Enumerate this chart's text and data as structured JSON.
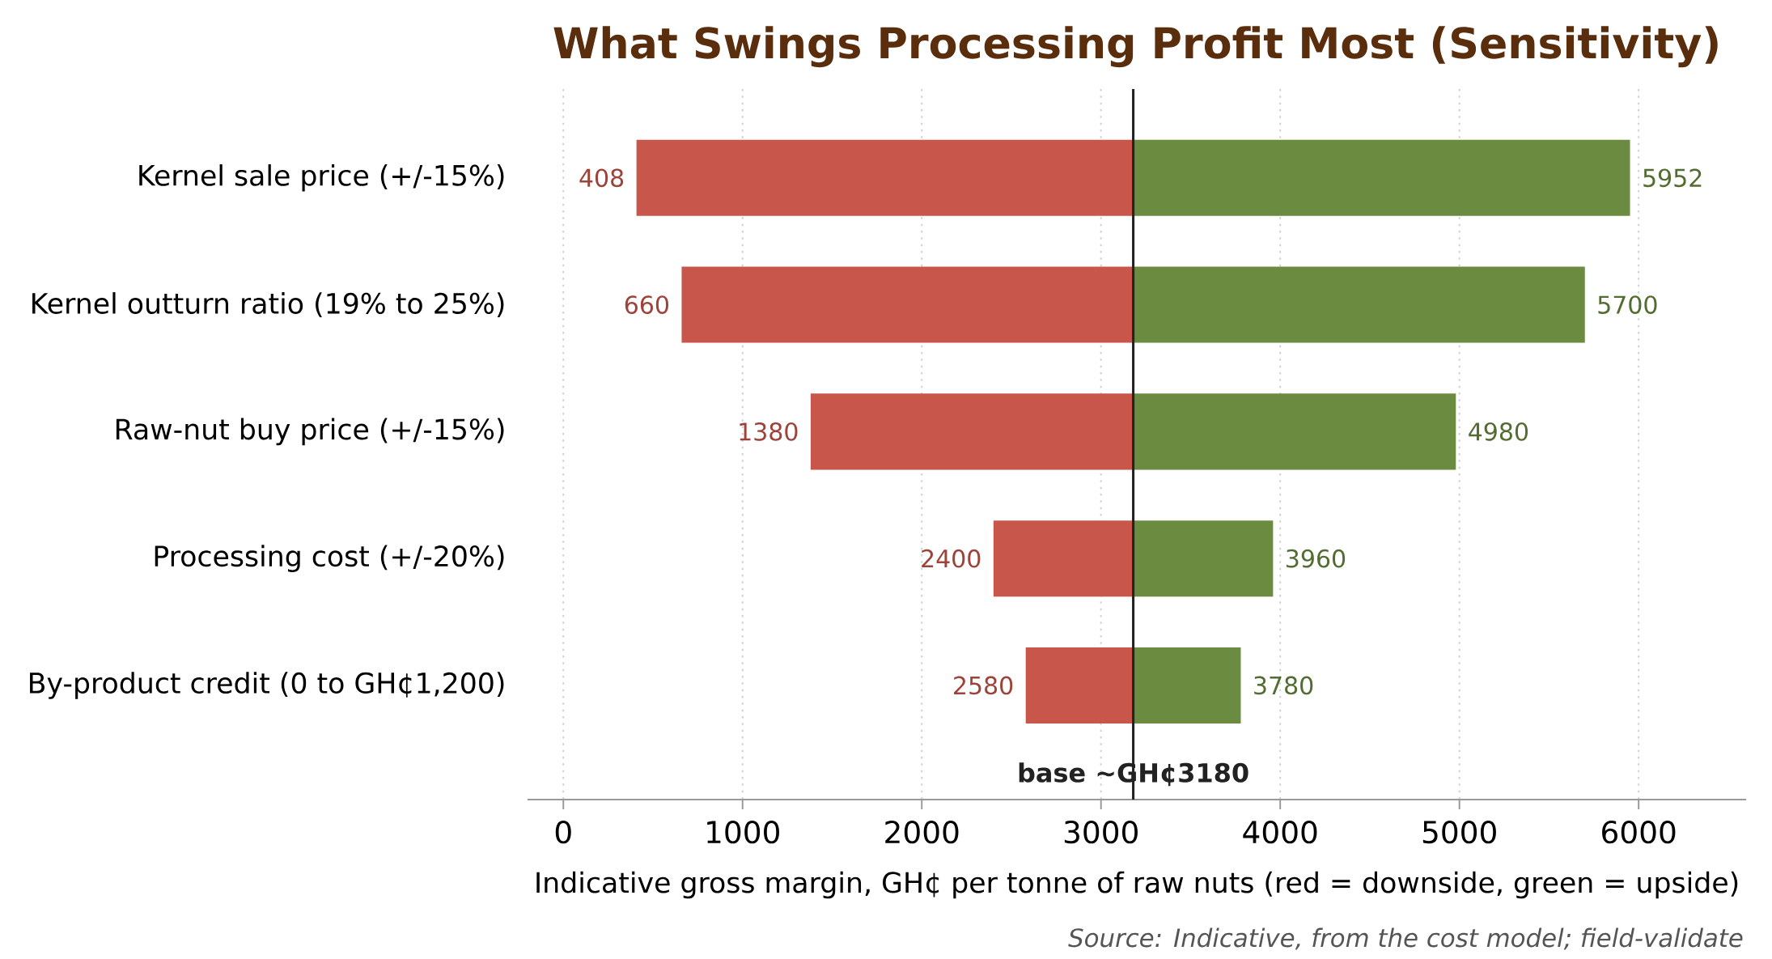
{
  "chart_data": {
    "type": "bar",
    "orientation": "horizontal",
    "title": "What Swings Processing Profit Most (Sensitivity)",
    "xlabel": "Indicative gross margin, GH¢ per tonne of raw nuts  (red = downside, green = upside)",
    "annotations": [
      "Source: Indicative, from the cost model; field-validate"
    ],
    "categories": [
      "Kernel sale price  (+/-15%)",
      "Kernel outturn ratio  (19% to 25%)",
      "Raw-nut buy price  (+/-15%)",
      "Processing cost  (+/-20%)",
      "By-product credit  (0 to GH¢1,200)"
    ],
    "series": [
      {
        "color": "#c9564b",
        "base": [
          3180,
          3180,
          3180,
          3180,
          3180
        ],
        "values": [
          -2772,
          -2520,
          -1800,
          -780,
          -600
        ],
        "value_labels": [
          "408",
          "660",
          "1380",
          "2400",
          "2580"
        ]
      },
      {
        "color": "#6a8b40",
        "base": [
          3180,
          3180,
          3180,
          3180,
          3180
        ],
        "values": [
          2772,
          2520,
          1800,
          780,
          600
        ],
        "value_labels": [
          "5952",
          "5700",
          "4980",
          "3960",
          "3780"
        ]
      }
    ],
    "xlim": [
      -200,
      6600
    ],
    "xticks": [
      0,
      1000,
      2000,
      3000,
      4000,
      5000,
      6000
    ],
    "grid": "x",
    "ref_lines": [
      {
        "axis": "x",
        "value": 3180,
        "label": "base ~GH¢3180",
        "color": "#222222"
      }
    ]
  }
}
